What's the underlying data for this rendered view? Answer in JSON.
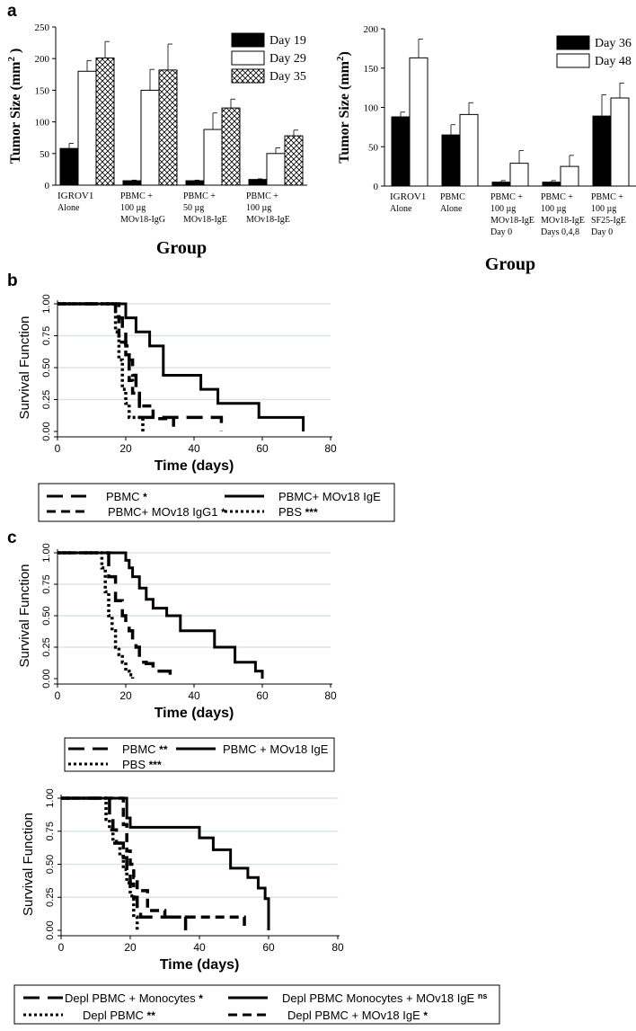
{
  "panel_labels": {
    "a": "a",
    "b": "b",
    "c": "c"
  },
  "chart_data": [
    {
      "id": "a1",
      "type": "bar",
      "title": "",
      "ylabel": "Tumor Size (mm²)",
      "ylabel_main": "Tumor Size (mm",
      "ylabel_sup": "2",
      "ylabel_close": " )",
      "xlabel": "Group",
      "ylim": [
        0,
        250
      ],
      "yticks": [
        0,
        50,
        100,
        150,
        200,
        250
      ],
      "categories": [
        [
          "IGROV1",
          "Alone"
        ],
        [
          "PBMC +",
          "100 µg",
          "MOv18-IgG"
        ],
        [
          "PBMC +",
          "50 µg",
          "MOv18-IgE"
        ],
        [
          "PBMC +",
          "100 µg",
          "MOv18-IgE"
        ]
      ],
      "series": [
        {
          "name": "Day 19",
          "style": "black",
          "values": [
            58,
            7,
            7,
            9
          ],
          "errors": [
            8,
            1,
            1,
            1
          ]
        },
        {
          "name": "Day 29",
          "style": "white",
          "values": [
            180,
            150,
            88,
            50
          ],
          "errors": [
            17,
            33,
            26,
            9
          ]
        },
        {
          "name": "Day 35",
          "style": "hatch",
          "values": [
            201,
            182,
            122,
            78
          ],
          "errors": [
            26,
            41,
            14,
            9
          ]
        }
      ]
    },
    {
      "id": "a2",
      "type": "bar",
      "title": "",
      "ylabel": "Tumor Size (mm²)",
      "ylabel_main": "Tumor Size (mm",
      "ylabel_sup": "2",
      "ylabel_close": ")",
      "xlabel": "Group",
      "ylim": [
        0,
        200
      ],
      "yticks": [
        0,
        50,
        100,
        150,
        200
      ],
      "categories": [
        [
          "IGROV1",
          "Alone"
        ],
        [
          "PBMC",
          "Alone"
        ],
        [
          "PBMC +",
          "100 µg",
          "MOv18-IgE",
          "Day 0"
        ],
        [
          "PBMC +",
          "100 µg",
          "MOv18-IgE",
          "Days 0,4,8"
        ],
        [
          "PBMC +",
          "100 µg",
          "SF25-IgE",
          "Day 0"
        ]
      ],
      "series": [
        {
          "name": "Day 36",
          "style": "black",
          "values": [
            88,
            65,
            5,
            5,
            89
          ],
          "errors": [
            6,
            13,
            2,
            2,
            27
          ]
        },
        {
          "name": "Day 48",
          "style": "white",
          "values": [
            163,
            91,
            29,
            25,
            112
          ],
          "errors": [
            24,
            15,
            16,
            14,
            19
          ]
        }
      ]
    },
    {
      "id": "b",
      "type": "line",
      "ylabel": "Survival Function",
      "xlabel": "Time (days)",
      "xlim": [
        0,
        80
      ],
      "ylim": [
        0,
        1
      ],
      "xticks": [
        0,
        20,
        40,
        60,
        80
      ],
      "yticks": [
        0.0,
        0.25,
        0.5,
        0.75,
        1.0
      ],
      "ytick_labels": [
        "0.00",
        "0.25",
        "0.50",
        "0.75",
        "1.00"
      ],
      "series": [
        {
          "name": "PBMC",
          "sig": "*",
          "style": "longdash",
          "x": [
            0,
            18,
            19,
            20,
            21,
            22,
            23,
            24,
            36,
            48
          ],
          "y": [
            1.0,
            0.89,
            0.78,
            0.67,
            0.56,
            0.44,
            0.33,
            0.11,
            0.11,
            0.0
          ]
        },
        {
          "name": "PBMC+ MOv18 IgE",
          "sig": "",
          "style": "solid",
          "x": [
            0,
            20,
            23,
            27,
            31,
            42,
            47,
            59,
            72
          ],
          "y": [
            1.0,
            0.89,
            0.78,
            0.67,
            0.44,
            0.33,
            0.22,
            0.11,
            0.0
          ]
        },
        {
          "name": "PBMC+ MOv18 IgG1",
          "sig": "*",
          "style": "dash",
          "x": [
            0,
            17,
            18,
            20,
            21,
            22,
            24,
            28,
            34
          ],
          "y": [
            1.0,
            0.9,
            0.7,
            0.6,
            0.4,
            0.3,
            0.2,
            0.1,
            0.0
          ]
        },
        {
          "name": "PBS",
          "sig": "***",
          "style": "dot",
          "x": [
            0,
            17,
            18,
            19,
            20,
            21,
            22,
            25
          ],
          "y": [
            1.0,
            0.78,
            0.56,
            0.33,
            0.22,
            0.11,
            0.11,
            0.0
          ]
        }
      ]
    },
    {
      "id": "c1",
      "type": "line",
      "ylabel": "Survival Function",
      "xlabel": "Time (days)",
      "xlim": [
        0,
        80
      ],
      "ylim": [
        0,
        1
      ],
      "xticks": [
        0,
        20,
        40,
        60,
        80
      ],
      "yticks": [
        0.0,
        0.25,
        0.5,
        0.75,
        1.0
      ],
      "ytick_labels": [
        "0.00",
        "0.25",
        "0.50",
        "0.75",
        "1.00"
      ],
      "series": [
        {
          "name": "PBMC",
          "sig": "**",
          "style": "longdash",
          "x": [
            0,
            15,
            17,
            19,
            20,
            21,
            22,
            23,
            24,
            26,
            28,
            33
          ],
          "y": [
            1.0,
            0.81,
            0.62,
            0.5,
            0.4,
            0.38,
            0.31,
            0.25,
            0.13,
            0.12,
            0.06,
            0.0
          ]
        },
        {
          "name": "PBMC + MOv18 IgE",
          "sig": "",
          "style": "solid",
          "x": [
            0,
            20,
            21,
            22,
            24,
            26,
            28,
            32,
            36,
            45,
            46,
            52,
            58,
            60
          ],
          "y": [
            1.0,
            0.94,
            0.88,
            0.81,
            0.72,
            0.63,
            0.56,
            0.5,
            0.38,
            0.38,
            0.25,
            0.13,
            0.06,
            0.0
          ]
        },
        {
          "name": "PBS",
          "sig": "***",
          "style": "dot",
          "x": [
            0,
            13,
            14,
            15,
            16,
            17,
            18,
            19,
            20,
            21,
            22
          ],
          "y": [
            1.0,
            0.88,
            0.69,
            0.5,
            0.38,
            0.25,
            0.19,
            0.13,
            0.06,
            0.03,
            0.0
          ]
        }
      ]
    },
    {
      "id": "c2",
      "type": "line",
      "ylabel": "Survival Function",
      "xlabel": "Time (days)",
      "xlim": [
        0,
        80
      ],
      "ylim": [
        0,
        1
      ],
      "xticks": [
        0,
        20,
        40,
        60,
        80
      ],
      "yticks": [
        0.0,
        0.25,
        0.5,
        0.75,
        1.0
      ],
      "ytick_labels": [
        "0.00",
        "0.25",
        "0.50",
        "0.75",
        "1.00"
      ],
      "series": [
        {
          "name": "Depl PBMC + Monocytes",
          "sig": "*",
          "style": "longdash",
          "x": [
            0,
            14,
            15,
            16,
            18,
            19,
            20,
            21,
            22,
            23,
            24,
            36
          ],
          "y": [
            1.0,
            0.86,
            0.76,
            0.66,
            0.55,
            0.45,
            0.35,
            0.25,
            0.15,
            0.1,
            0.1,
            0.0
          ]
        },
        {
          "name": "Depl PBMC  Monocytes + MOv18 IgE",
          "sig": "ns",
          "style": "solid",
          "x": [
            0,
            19,
            20,
            31,
            40,
            44,
            49,
            54,
            57,
            59,
            60
          ],
          "y": [
            1.0,
            0.85,
            0.78,
            0.78,
            0.7,
            0.61,
            0.47,
            0.4,
            0.32,
            0.24,
            0.0
          ]
        },
        {
          "name": "Depl PBMC",
          "sig": "**",
          "style": "dot",
          "x": [
            0,
            13,
            14,
            15,
            17,
            18,
            19,
            20,
            21,
            22
          ],
          "y": [
            1.0,
            0.84,
            0.76,
            0.66,
            0.56,
            0.46,
            0.36,
            0.26,
            0.1,
            0.0
          ]
        },
        {
          "name": "Depl PBMC + MOv18 IgE",
          "sig": "*",
          "style": "dash",
          "x": [
            0,
            18,
            19,
            20,
            21,
            22,
            25,
            30,
            53
          ],
          "y": [
            1.0,
            0.8,
            0.6,
            0.5,
            0.4,
            0.3,
            0.15,
            0.1,
            0.0
          ]
        }
      ]
    }
  ],
  "legends": {
    "b": [
      {
        "series": 0,
        "label": "PBMC",
        "sig": "*"
      },
      {
        "series": 1,
        "label": "PBMC+ MOv18 IgE",
        "sig": ""
      },
      {
        "series": 2,
        "label": "PBMC+ MOv18 IgG1",
        "sig": "*"
      },
      {
        "series": 3,
        "label": "PBS",
        "sig": "***"
      }
    ],
    "c1": [
      {
        "series": 0,
        "label": "PBMC",
        "sig": "**"
      },
      {
        "series": 1,
        "label": "PBMC + MOv18 IgE",
        "sig": ""
      },
      {
        "series": 2,
        "label": "PBS",
        "sig": "***"
      }
    ],
    "c2": [
      {
        "series": 0,
        "label": "Depl PBMC + Monocytes",
        "sig": "*"
      },
      {
        "series": 1,
        "label": "Depl PBMC  Monocytes + MOv18 IgE",
        "sig": "ns"
      },
      {
        "series": 2,
        "label": "Depl PBMC",
        "sig": "**"
      },
      {
        "series": 3,
        "label": "Depl PBMC + MOv18 IgE",
        "sig": "*"
      }
    ]
  }
}
